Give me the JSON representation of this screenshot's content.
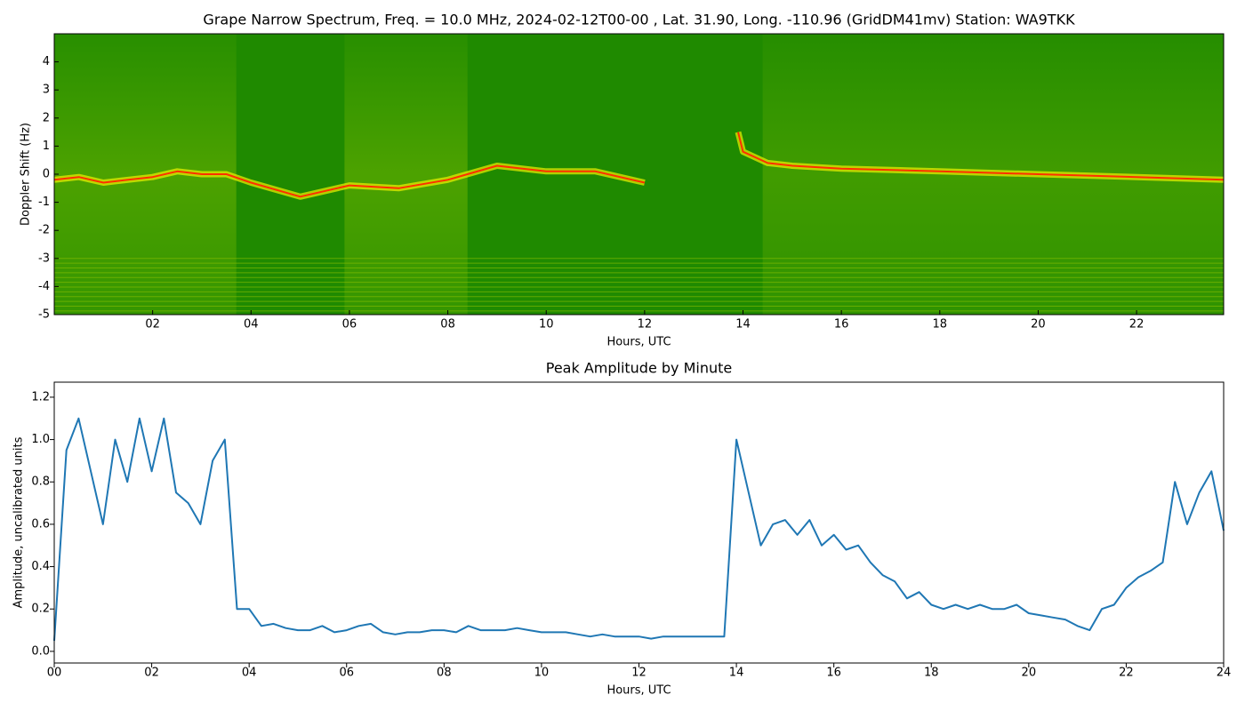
{
  "chart_data": [
    {
      "type": "spectrogram",
      "title": "Grape Narrow Spectrum, Freq. = 10.0 MHz, 2024-02-12T00-00 , Lat.  31.90, Long. -110.96 (GridDM41mv) Station: WA9TKK",
      "xlabel": "Hours, UTC",
      "ylabel": "Doppler Shift (Hz)",
      "background": "#1f8a00",
      "color": "#ff3000",
      "x": [
        0,
        0.5,
        1.0,
        1.5,
        2.0,
        2.5,
        3.0,
        3.5,
        4.0,
        5.0,
        6.0,
        7.0,
        8.0,
        9.0,
        10.0,
        11.0,
        12.0,
        13.0,
        13.9,
        14.0,
        14.5,
        15.0,
        16.0,
        18.0,
        20.0,
        22.0,
        23.77
      ],
      "values": [
        -0.2,
        -0.1,
        -0.3,
        -0.2,
        -0.1,
        0.1,
        0.0,
        0.0,
        -0.3,
        -0.8,
        -0.4,
        -0.5,
        -0.2,
        0.3,
        0.1,
        0.1,
        -0.3,
        null,
        1.5,
        0.8,
        0.4,
        0.3,
        0.2,
        0.1,
        0.0,
        -0.1,
        -0.2
      ],
      "xlim": [
        0,
        23.77
      ],
      "ylim": [
        -5,
        5
      ],
      "xticks": [
        {
          "value": 2,
          "label": "02"
        },
        {
          "value": 4,
          "label": "04"
        },
        {
          "value": 6,
          "label": "06"
        },
        {
          "value": 8,
          "label": "08"
        },
        10,
        12,
        14,
        16,
        18,
        20,
        22
      ],
      "yticks": [
        -5,
        -4,
        -3,
        -2,
        -1,
        0,
        1,
        2,
        3,
        4
      ]
    },
    {
      "type": "line",
      "title": "Peak Amplitude by Minute",
      "xlabel": "Hours, UTC",
      "ylabel": "Amplitude, uncalibrated units",
      "color": "#1f77b4",
      "x": [
        0,
        0.25,
        0.5,
        0.75,
        1,
        1.25,
        1.5,
        1.75,
        2,
        2.25,
        2.5,
        2.75,
        3,
        3.25,
        3.5,
        3.75,
        4,
        4.25,
        4.5,
        4.75,
        5,
        5.25,
        5.5,
        5.75,
        6,
        6.25,
        6.5,
        6.75,
        7,
        7.25,
        7.5,
        7.75,
        8,
        8.25,
        8.5,
        8.75,
        9,
        9.25,
        9.5,
        9.75,
        10,
        10.25,
        10.5,
        10.75,
        11,
        11.25,
        11.5,
        11.75,
        12,
        12.25,
        12.5,
        12.75,
        13,
        13.25,
        13.5,
        13.75,
        14,
        14.25,
        14.5,
        14.75,
        15,
        15.25,
        15.5,
        15.75,
        16,
        16.25,
        16.5,
        16.75,
        17,
        17.25,
        17.5,
        17.75,
        18,
        18.25,
        18.5,
        18.75,
        19,
        19.25,
        19.5,
        19.75,
        20,
        20.25,
        20.5,
        20.75,
        21,
        21.25,
        21.5,
        21.75,
        22,
        22.25,
        22.5,
        22.75,
        23,
        23.25,
        23.5,
        23.75,
        24
      ],
      "values": [
        0.05,
        0.95,
        1.1,
        0.85,
        0.6,
        1.0,
        0.8,
        1.1,
        0.85,
        1.1,
        0.75,
        0.7,
        0.6,
        0.9,
        1.0,
        0.2,
        0.2,
        0.12,
        0.13,
        0.11,
        0.1,
        0.1,
        0.12,
        0.09,
        0.1,
        0.12,
        0.13,
        0.09,
        0.08,
        0.09,
        0.09,
        0.1,
        0.1,
        0.09,
        0.12,
        0.1,
        0.1,
        0.1,
        0.11,
        0.1,
        0.09,
        0.09,
        0.09,
        0.08,
        0.07,
        0.08,
        0.07,
        0.07,
        0.07,
        0.06,
        0.07,
        0.07,
        0.07,
        0.07,
        0.07,
        0.07,
        1.0,
        0.75,
        0.5,
        0.6,
        0.62,
        0.55,
        0.62,
        0.5,
        0.55,
        0.48,
        0.5,
        0.42,
        0.36,
        0.33,
        0.25,
        0.28,
        0.22,
        0.2,
        0.22,
        0.2,
        0.22,
        0.2,
        0.2,
        0.22,
        0.18,
        0.17,
        0.16,
        0.15,
        0.12,
        0.1,
        0.2,
        0.22,
        0.3,
        0.35,
        0.38,
        0.42,
        0.8,
        0.6,
        0.75,
        0.85,
        0.57
      ],
      "xlim": [
        0,
        24
      ],
      "ylim": [
        -0.055,
        1.271
      ],
      "xticks": [
        {
          "value": 0,
          "label": "00"
        },
        {
          "value": 2,
          "label": "02"
        },
        {
          "value": 4,
          "label": "04"
        },
        {
          "value": 6,
          "label": "06"
        },
        {
          "value": 8,
          "label": "08"
        },
        10,
        12,
        14,
        16,
        18,
        20,
        22,
        24
      ],
      "yticks": [
        {
          "value": 0,
          "label": "0.0"
        },
        0.2,
        0.4,
        0.6,
        0.8,
        {
          "value": 1,
          "label": "1.0"
        },
        1.2
      ]
    }
  ]
}
